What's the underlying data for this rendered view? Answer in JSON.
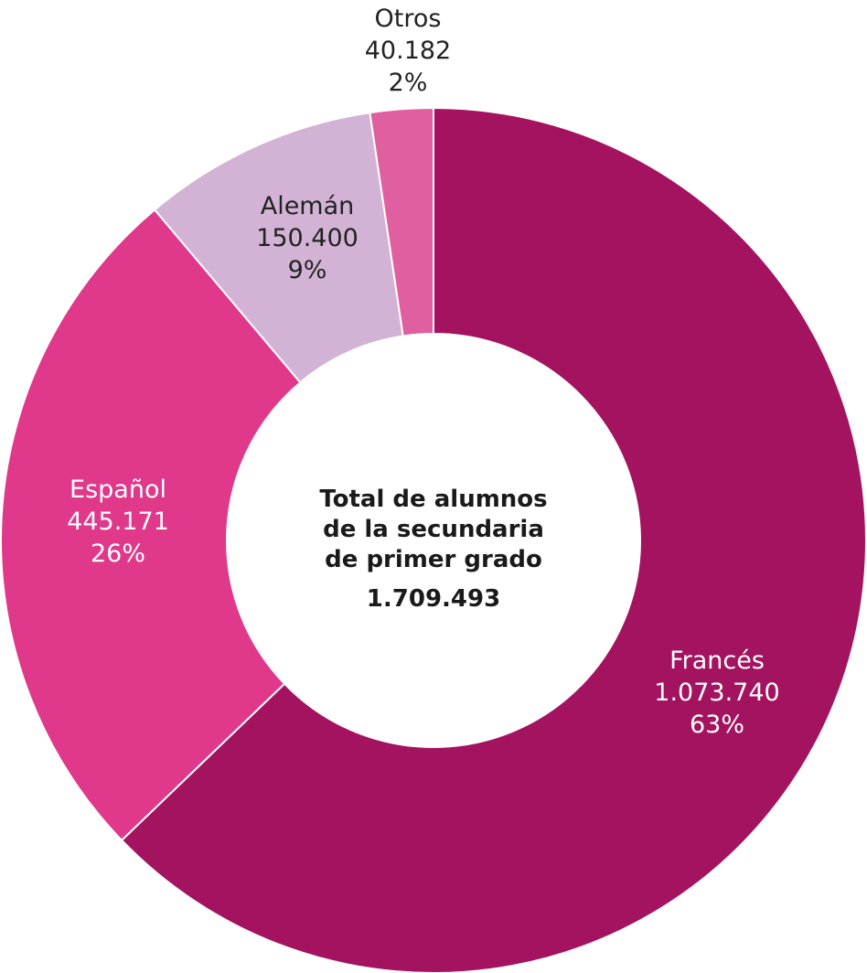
{
  "chart_data": {
    "type": "pie",
    "variant": "donut",
    "start": "top",
    "direction": "clockwise",
    "center_label": {
      "lines": [
        "Total de alumnos",
        "de la secundaria",
        "de primer grado"
      ],
      "total": "1.709.493"
    },
    "slices": [
      {
        "name": "Francés",
        "value": 1073740,
        "value_label": "1.073.740",
        "percent": "63%",
        "color": "#a3135f"
      },
      {
        "name": "Español",
        "value": 445171,
        "value_label": "445.171",
        "percent": "26%",
        "color": "#e0388a"
      },
      {
        "name": "Alemán",
        "value": 150400,
        "value_label": "150.400",
        "percent": "9%",
        "color": "#d3b3d5"
      },
      {
        "name": "Otros",
        "value": 40182,
        "value_label": "40.182",
        "percent": "2%",
        "color": "#df5fa0"
      }
    ]
  }
}
